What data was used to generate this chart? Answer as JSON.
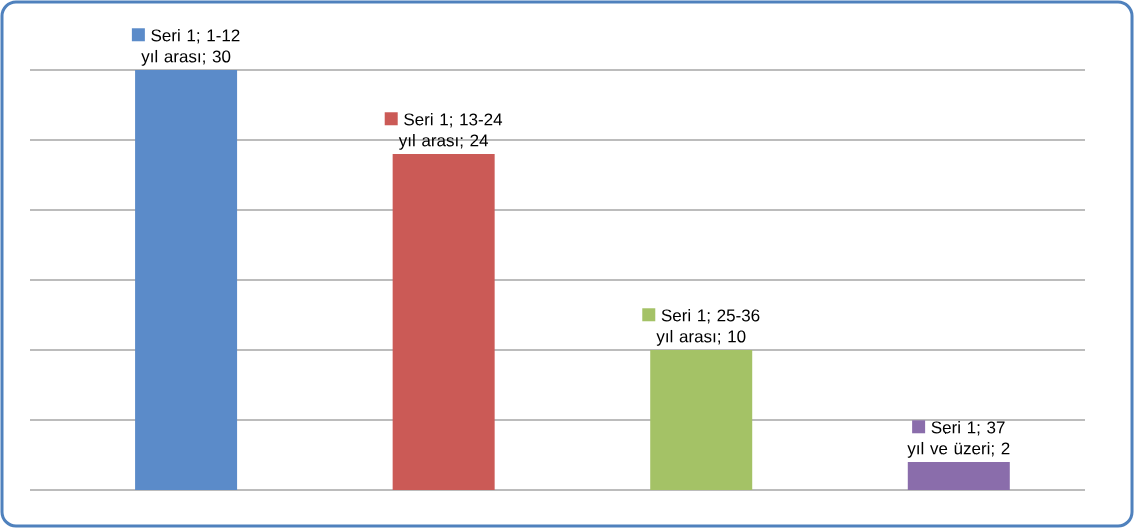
{
  "chart_data": {
    "type": "bar",
    "categories": [
      null,
      null,
      null,
      null
    ],
    "values": [
      30,
      24,
      10,
      2
    ],
    "colors": [
      "#5b8bc9",
      "#cb5a56",
      "#a4c266",
      "#8a6dab"
    ],
    "value_labels": [
      "Seri 1; 1-12 yıl arası; 30",
      "Seri 1; 13-24 yıl arası; 24",
      "Seri 1; 25-36 yıl arası; 10",
      "Seri 1; 37 yıl ve üzeri; 2"
    ],
    "ylim": [
      0,
      30
    ],
    "yticks": [
      {
        "value": 0,
        "label": null
      },
      {
        "value": 5,
        "label": null
      },
      {
        "value": 10,
        "label": null
      },
      {
        "value": 15,
        "label": null
      },
      {
        "value": 20,
        "label": null
      },
      {
        "value": 25,
        "label": null
      },
      {
        "value": 30,
        "label": null
      }
    ],
    "grid": "y"
  }
}
